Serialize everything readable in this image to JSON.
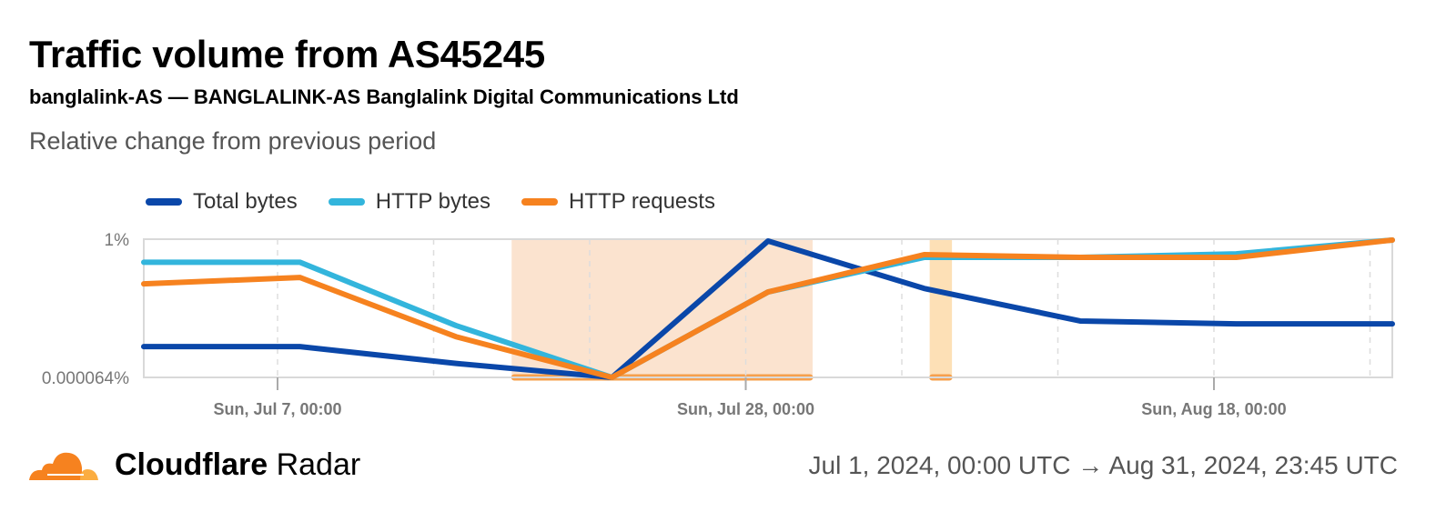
{
  "header": {
    "title": "Traffic volume from AS45245",
    "subtitle": "banglalink-AS — BANGLALINK-AS Banglalink Digital Communications Ltd",
    "description": "Relative change from previous period"
  },
  "footer": {
    "brand_bold": "Cloudflare",
    "brand_light": "Radar",
    "date_range": "Jul 1, 2024, 00:00 UTC → Aug 31, 2024, 23:45 UTC"
  },
  "chart_data": {
    "type": "line",
    "title": "",
    "xlabel": "",
    "ylabel": "",
    "y_scale": "log",
    "ylim": [
      6.4e-05,
      1
    ],
    "y_tick_labels": [
      "1%",
      "0.000064%"
    ],
    "xlim": [
      "2024-07-01",
      "2024-08-26"
    ],
    "x_tick_labels": [
      {
        "date": "2024-07-07",
        "label": "Sun, Jul 7, 00:00"
      },
      {
        "date": "2024-07-28",
        "label": "Sun, Jul 28, 00:00"
      },
      {
        "date": "2024-08-18",
        "label": "Sun, Aug 18, 00:00"
      }
    ],
    "grid_dates": [
      "2024-07-07",
      "2024-07-14",
      "2024-07-21",
      "2024-07-28",
      "2024-08-04",
      "2024-08-11",
      "2024-08-18",
      "2024-08-25"
    ],
    "legend_position": "top-left",
    "x": [
      "2024-07-01",
      "2024-07-08",
      "2024-07-15",
      "2024-07-22",
      "2024-07-29",
      "2024-08-05",
      "2024-08-12",
      "2024-08-19",
      "2024-08-26"
    ],
    "series": [
      {
        "name": "Total bytes",
        "color": "#0a47a9",
        "values": [
          0.00055,
          0.00055,
          0.00017,
          6.4e-05,
          0.88,
          0.032,
          0.0033,
          0.0027,
          0.0027
        ]
      },
      {
        "name": "HTTP bytes",
        "color": "#33b5dc",
        "values": [
          0.2,
          0.2,
          0.0024,
          6.4e-05,
          0.025,
          0.28,
          0.28,
          0.36,
          0.94
        ]
      },
      {
        "name": "HTTP requests",
        "color": "#f6821f",
        "values": [
          0.044,
          0.069,
          0.0011,
          6.4e-05,
          0.025,
          0.34,
          0.28,
          0.28,
          0.94
        ]
      }
    ],
    "annotations": [
      {
        "start": "2024-07-17T12:00",
        "end": "2024-07-31T00:00",
        "color": "#fbe3cf"
      },
      {
        "start": "2024-08-05T06:00",
        "end": "2024-08-06T06:00",
        "color": "#fde0b6"
      }
    ]
  }
}
